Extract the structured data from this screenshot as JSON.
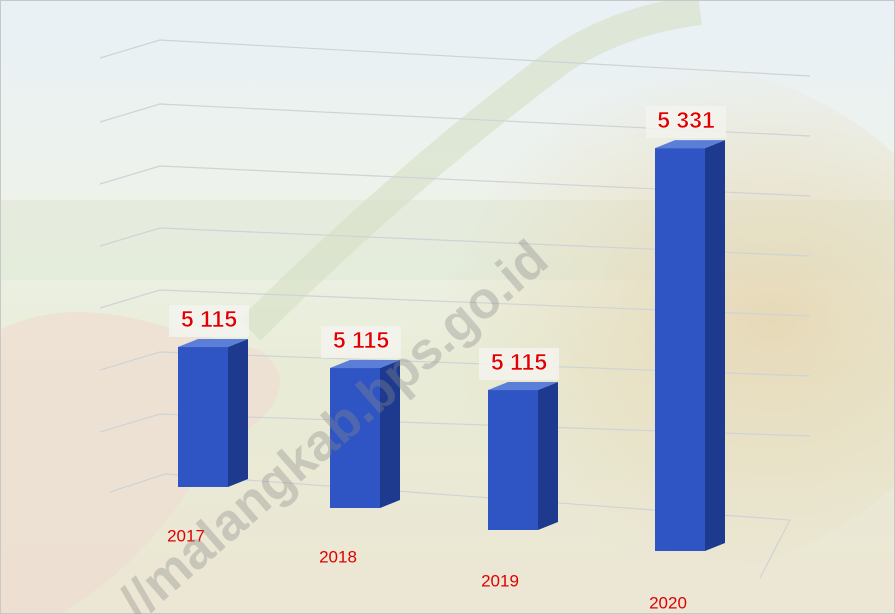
{
  "chart_data": {
    "type": "bar3d",
    "categories": [
      "2017",
      "2018",
      "2019",
      "2020"
    ],
    "values": [
      5115,
      5115,
      5115,
      5331
    ],
    "value_labels": [
      "5 115",
      "5 115",
      "5 115",
      "5 331"
    ],
    "color": "#2f55c4",
    "label_color": "#e00000",
    "ylim": [
      5000,
      5350
    ],
    "watermark": "//malangkab.bps.go.id"
  }
}
